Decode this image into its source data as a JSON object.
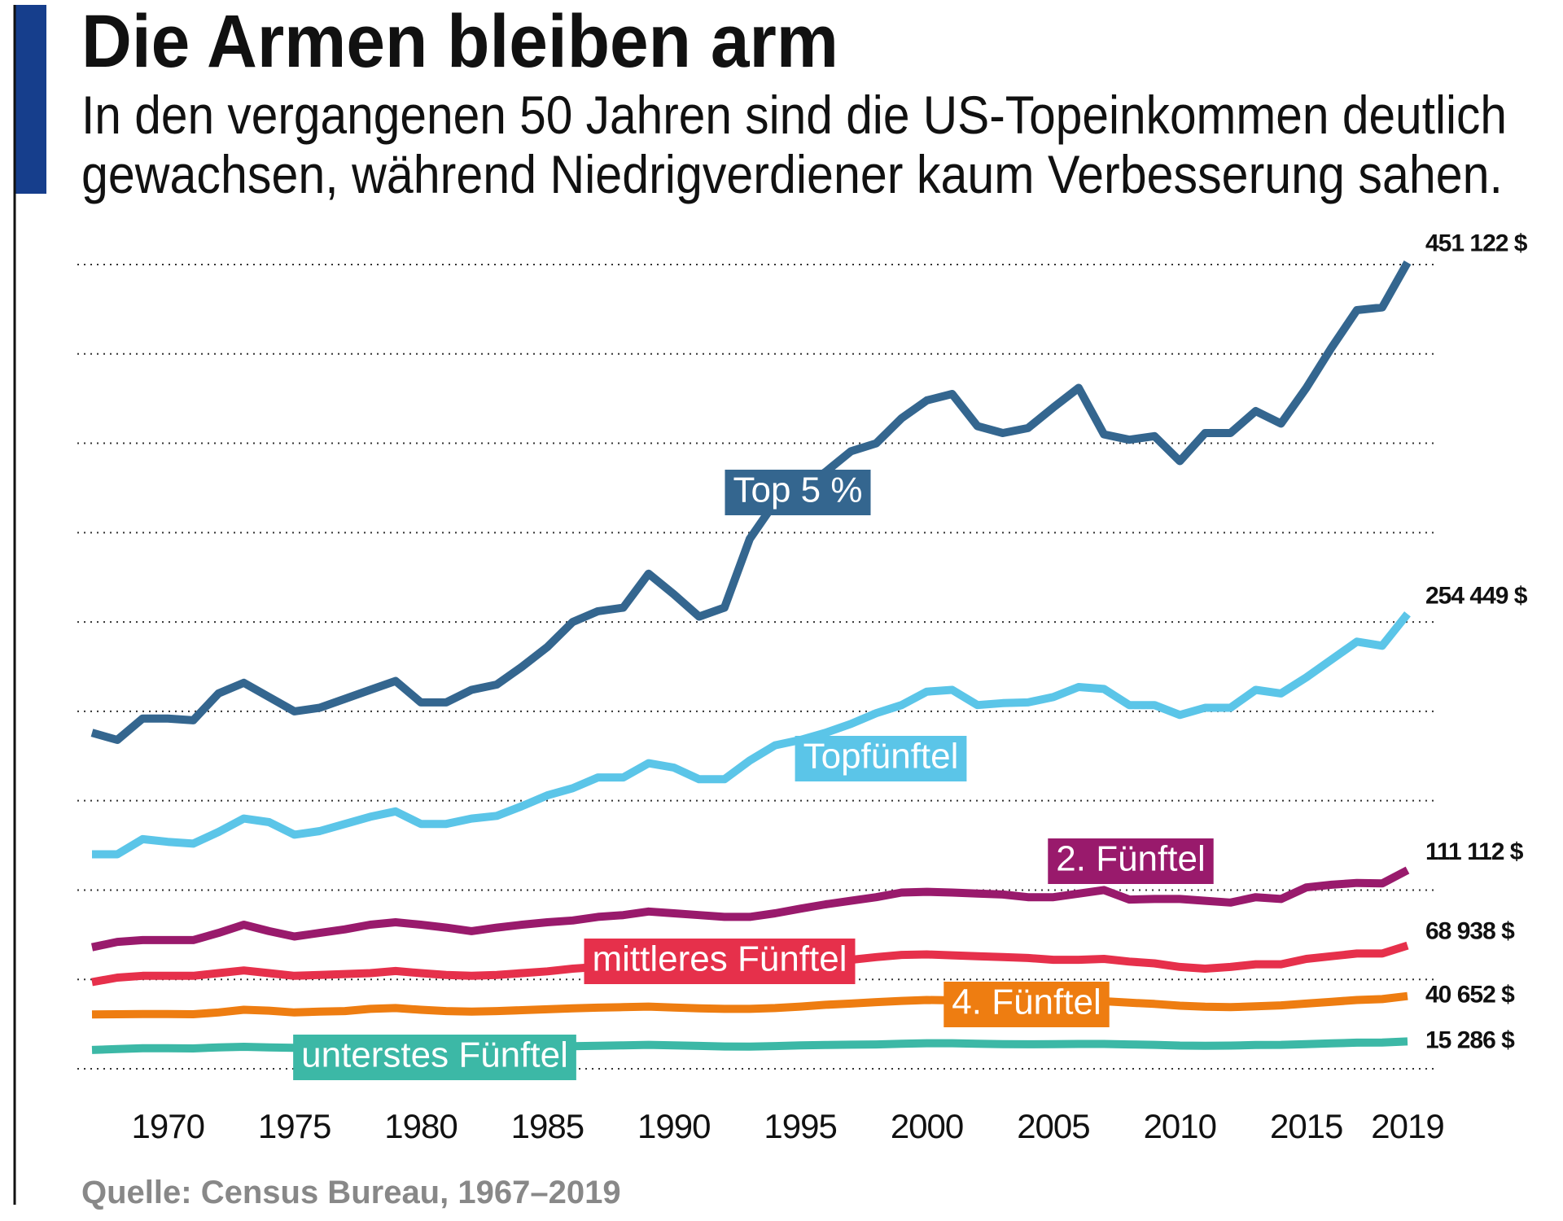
{
  "chart_data": {
    "type": "line",
    "title": "Die Armen bleiben arm",
    "subtitle": [
      "In den vergangenen 50 Jahren sind die US-Topeinkommen deutlich",
      "gewachsen, während Niedrigverdiener kaum Verbesserung sahen."
    ],
    "source": "Quelle: Census Bureau, 1967–2019",
    "x": [
      1967,
      1968,
      1969,
      1970,
      1971,
      1972,
      1973,
      1974,
      1975,
      1976,
      1977,
      1978,
      1979,
      1980,
      1981,
      1982,
      1983,
      1984,
      1985,
      1986,
      1987,
      1988,
      1989,
      1990,
      1991,
      1992,
      1993,
      1994,
      1995,
      1996,
      1997,
      1998,
      1999,
      2000,
      2001,
      2002,
      2003,
      2004,
      2005,
      2006,
      2007,
      2008,
      2009,
      2010,
      2011,
      2012,
      2013,
      2014,
      2015,
      2016,
      2017,
      2018,
      2019
    ],
    "xlim": [
      1967,
      2019
    ],
    "xticks": [
      1970,
      1975,
      1980,
      1985,
      1990,
      1995,
      2000,
      2005,
      2010,
      2015,
      2019
    ],
    "ylim": [
      0,
      450000
    ],
    "yticks": [
      0,
      50000,
      100000,
      150000,
      200000,
      250000,
      300000,
      350000,
      400000,
      450000
    ],
    "ytick_labels": false,
    "grid": true,
    "series": [
      {
        "name": "Top 5 %",
        "color": "#34668f",
        "values": [
          188000,
          184000,
          196000,
          196000,
          195000,
          210000,
          216000,
          208000,
          200000,
          202000,
          207000,
          212000,
          217000,
          205000,
          205000,
          212000,
          215000,
          225000,
          236000,
          250000,
          256000,
          258000,
          277000,
          265500,
          253000,
          258000,
          296500,
          317000,
          323500,
          334000,
          345500,
          350000,
          364000,
          374000,
          377600,
          359600,
          355700,
          358500,
          370000,
          381000,
          355000,
          352000,
          354000,
          340000,
          355700,
          355700,
          368000,
          361000,
          381000,
          403600,
          424500,
          426000,
          451122
        ],
        "value_labels": [
          null,
          null,
          null,
          null,
          null,
          null,
          null,
          null,
          null,
          null,
          null,
          null,
          null,
          null,
          null,
          null,
          null,
          null,
          null,
          null,
          null,
          null,
          null,
          null,
          null,
          null,
          null,
          null,
          null,
          null,
          null,
          null,
          null,
          null,
          null,
          null,
          null,
          null,
          null,
          null,
          null,
          null,
          null,
          null,
          null,
          null,
          null,
          null,
          null,
          null,
          null,
          null,
          "451 122 $"
        ]
      },
      {
        "name": "Topfünftel",
        "color": "#5bc5e8",
        "values": [
          120000,
          120000,
          128500,
          127000,
          126000,
          132500,
          140000,
          138000,
          131000,
          133000,
          137000,
          141000,
          144000,
          137000,
          137000,
          140000,
          141500,
          147000,
          153000,
          157000,
          163000,
          163000,
          171000,
          168500,
          162000,
          162000,
          172500,
          181000,
          184000,
          188000,
          193000,
          199000,
          203500,
          211000,
          212000,
          203500,
          204600,
          205000,
          208000,
          213600,
          212500,
          203500,
          203500,
          198000,
          202000,
          202000,
          212000,
          210000,
          219000,
          229000,
          239000,
          236700,
          254449
        ],
        "value_labels": [
          null,
          null,
          null,
          null,
          null,
          null,
          null,
          null,
          null,
          null,
          null,
          null,
          null,
          null,
          null,
          null,
          null,
          null,
          null,
          null,
          null,
          null,
          null,
          null,
          null,
          null,
          null,
          null,
          null,
          null,
          null,
          null,
          null,
          null,
          null,
          null,
          null,
          null,
          null,
          null,
          null,
          null,
          null,
          null,
          null,
          null,
          null,
          null,
          null,
          null,
          null,
          null,
          "254 449 $"
        ]
      },
      {
        "name": "2. Fünftel",
        "color": "#991a6c",
        "values": [
          68000,
          71000,
          72000,
          72000,
          72000,
          76000,
          80600,
          77000,
          74000,
          76000,
          78000,
          80600,
          82000,
          80600,
          79000,
          77000,
          79000,
          80600,
          82000,
          83000,
          85000,
          86000,
          88000,
          87000,
          86000,
          85000,
          85000,
          87000,
          89600,
          92000,
          94000,
          96000,
          98600,
          99000,
          98600,
          98000,
          97500,
          96000,
          96000,
          98000,
          100000,
          94700,
          95000,
          95000,
          94000,
          93000,
          96000,
          95000,
          101500,
          103000,
          104000,
          103700,
          111112
        ],
        "value_labels": [
          null,
          null,
          null,
          null,
          null,
          null,
          null,
          null,
          null,
          null,
          null,
          null,
          null,
          null,
          null,
          null,
          null,
          null,
          null,
          null,
          null,
          null,
          null,
          null,
          null,
          null,
          null,
          null,
          null,
          null,
          null,
          null,
          null,
          null,
          null,
          null,
          null,
          null,
          null,
          null,
          null,
          null,
          null,
          null,
          null,
          null,
          null,
          null,
          null,
          null,
          null,
          null,
          "111 112 $"
        ]
      },
      {
        "name": "mittleres Fünftel",
        "color": "#e6304b",
        "values": [
          48500,
          51000,
          52000,
          52000,
          52000,
          53500,
          55000,
          53500,
          52000,
          52500,
          53000,
          53500,
          54700,
          53500,
          52500,
          52000,
          52500,
          53500,
          54500,
          56000,
          57000,
          58000,
          59000,
          58500,
          57500,
          57000,
          57000,
          58000,
          59000,
          60000,
          61000,
          62500,
          63700,
          64000,
          63500,
          63000,
          62500,
          62000,
          61000,
          61000,
          61500,
          60000,
          59000,
          57000,
          56000,
          57000,
          58500,
          58500,
          61500,
          63000,
          64500,
          64500,
          68938
        ],
        "value_labels": [
          null,
          null,
          null,
          null,
          null,
          null,
          null,
          null,
          null,
          null,
          null,
          null,
          null,
          null,
          null,
          null,
          null,
          null,
          null,
          null,
          null,
          null,
          null,
          null,
          null,
          null,
          null,
          null,
          null,
          null,
          null,
          null,
          null,
          null,
          null,
          null,
          null,
          null,
          null,
          null,
          null,
          null,
          null,
          null,
          null,
          null,
          null,
          null,
          null,
          null,
          null,
          null,
          "68 938 $"
        ]
      },
      {
        "name": "4. Fünftel",
        "color": "#ee7d11",
        "values": [
          30400,
          30500,
          30600,
          30600,
          30500,
          31500,
          33000,
          32500,
          31500,
          32000,
          32300,
          33500,
          34000,
          33000,
          32300,
          32000,
          32300,
          32800,
          33300,
          33800,
          34200,
          34500,
          34800,
          34300,
          33800,
          33500,
          33500,
          34000,
          34800,
          35800,
          36500,
          37300,
          38000,
          38500,
          38300,
          37500,
          37300,
          37200,
          37200,
          37500,
          37800,
          37000,
          36300,
          35300,
          34700,
          34500,
          35000,
          35500,
          36500,
          37500,
          38500,
          39000,
          40652
        ],
        "value_labels": [
          null,
          null,
          null,
          null,
          null,
          null,
          null,
          null,
          null,
          null,
          null,
          null,
          null,
          null,
          null,
          null,
          null,
          null,
          null,
          null,
          null,
          null,
          null,
          null,
          null,
          null,
          null,
          null,
          null,
          null,
          null,
          null,
          null,
          null,
          null,
          null,
          null,
          null,
          null,
          null,
          null,
          null,
          null,
          null,
          null,
          null,
          null,
          null,
          null,
          null,
          null,
          null,
          "40 652 $"
        ]
      },
      {
        "name": "unterstes Fünftel",
        "color": "#3cb8a6",
        "values": [
          10500,
          11000,
          11500,
          11500,
          11400,
          12000,
          12300,
          12000,
          11700,
          11900,
          12000,
          12300,
          12500,
          12000,
          11500,
          11300,
          11500,
          11800,
          12200,
          12600,
          12900,
          13100,
          13400,
          13100,
          12800,
          12500,
          12400,
          12700,
          13100,
          13300,
          13500,
          13600,
          14000,
          14300,
          14300,
          14000,
          13800,
          13700,
          13800,
          13900,
          13900,
          13600,
          13400,
          13000,
          12900,
          13000,
          13300,
          13400,
          13800,
          14200,
          14600,
          14700,
          15286
        ],
        "value_labels": [
          null,
          null,
          null,
          null,
          null,
          null,
          null,
          null,
          null,
          null,
          null,
          null,
          null,
          null,
          null,
          null,
          null,
          null,
          null,
          null,
          null,
          null,
          null,
          null,
          null,
          null,
          null,
          null,
          null,
          null,
          null,
          null,
          null,
          null,
          null,
          null,
          null,
          null,
          null,
          null,
          null,
          null,
          null,
          null,
          null,
          null,
          null,
          null,
          null,
          null,
          null,
          null,
          "15 286 $"
        ]
      }
    ]
  }
}
